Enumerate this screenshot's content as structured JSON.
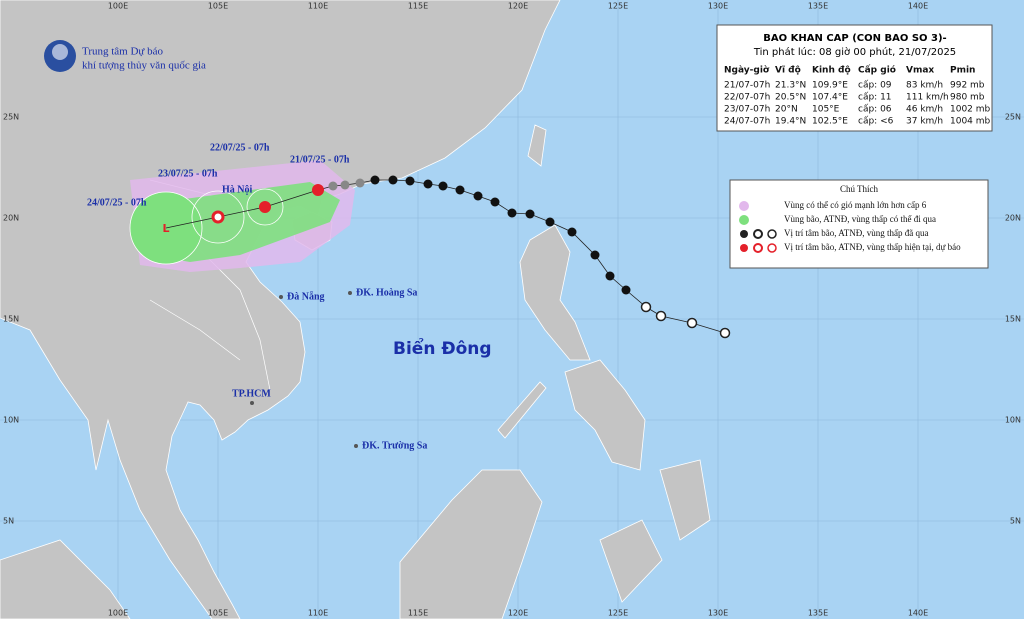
{
  "map": {
    "agency": {
      "line1": "Trung tâm Dự báo",
      "line2": "khí tượng thủy văn quốc gia"
    },
    "longitudes": [
      "100E",
      "105E",
      "110E",
      "115E",
      "120E",
      "125E",
      "130E",
      "135E",
      "140E"
    ],
    "latitudes": [
      "25N",
      "20N",
      "15N",
      "10N",
      "5N"
    ],
    "bulletin": {
      "title": "BAO KHAN CAP (CON BAO SO 3)-",
      "issued": "Tin phát lúc: 08 giờ 00 phút, 21/07/2025",
      "columns": [
        "Ngày-giờ",
        "Vĩ độ",
        "Kinh độ",
        "Cấp gió",
        "Vmax",
        "Pmin"
      ],
      "rows": [
        [
          "21/07-07h",
          "21.3°N",
          "109.9°E",
          "cấp: 09",
          "83 km/h",
          "992 mb"
        ],
        [
          "22/07-07h",
          "20.5°N",
          "107.4°E",
          "cấp: 11",
          "111 km/h",
          "980 mb"
        ],
        [
          "23/07-07h",
          "20°N",
          "105°E",
          "cấp: 06",
          "46 km/h",
          "1002 mb"
        ],
        [
          "24/07-07h",
          "19.4°N",
          "102.5°E",
          "cấp: <6",
          "37 km/h",
          "1004 mb"
        ]
      ]
    },
    "legend": {
      "title": "Chú Thích",
      "items": [
        "Vùng có thể có gió mạnh lớn hơn cấp 6",
        "Vùng bão, ATNĐ, vùng thấp có thể đi qua",
        "Vị trí tâm bão, ATNĐ, vùng thấp đã qua",
        "Vị trí tâm bão, ATNĐ, vùng thấp hiện tại, dự báo"
      ]
    },
    "places": {
      "sea": "Biển Đông",
      "danang": "Đà Nẵng",
      "hoangsa": "ĐK. Hoàng Sa",
      "hcm": "TP.HCM",
      "truongsa": "ĐK. Trường Sa",
      "hanoi": "Hà Nội"
    },
    "forecast_labels": [
      "21/07/25 - 07h",
      "22/07/25 - 07h",
      "23/07/25 - 07h",
      "24/07/25 - 07h"
    ]
  }
}
